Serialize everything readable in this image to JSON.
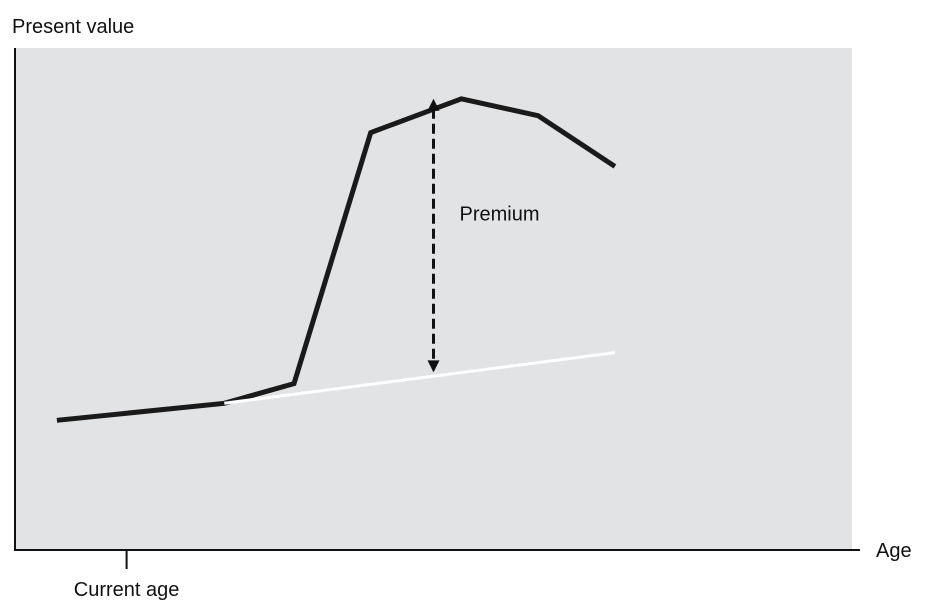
{
  "chart_data": {
    "type": "line",
    "title": "",
    "ylabel": "Present value",
    "xlabel": "Age",
    "x_tick_labels": [
      {
        "x": 0,
        "label": "Current age"
      }
    ],
    "annotations": [
      {
        "text": "Premium",
        "x": 22,
        "y_from": 21.5,
        "y_to": 70
      }
    ],
    "xlim": [
      -8,
      52
    ],
    "ylim": [
      -10,
      79
    ],
    "grid": false,
    "plot_background": "#e2e3e5",
    "series": [
      {
        "id": "with-option",
        "color": "#1a1a1a",
        "x": [
          -5,
          7,
          12,
          17.5,
          24,
          29.5,
          35
        ],
        "y": [
          13,
          16,
          19.5,
          64,
          70,
          67,
          58
        ]
      },
      {
        "id": "baseline",
        "color": "#ffffff",
        "x": [
          7,
          35
        ],
        "y": [
          16,
          25
        ]
      }
    ]
  }
}
